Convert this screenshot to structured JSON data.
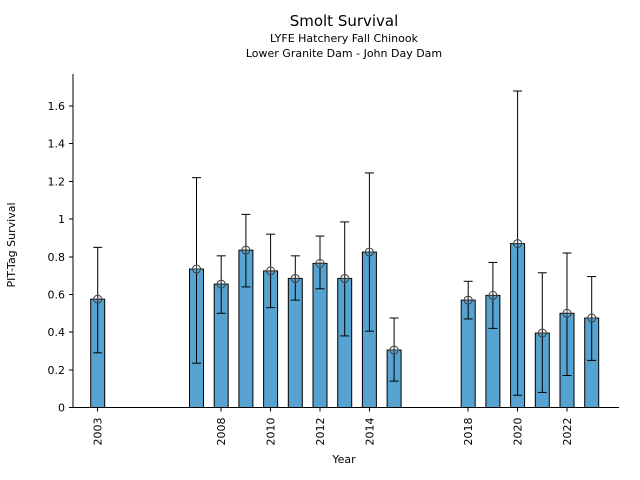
{
  "chart_data": {
    "type": "bar",
    "title": "Smolt Survival",
    "subtitle1": "LYFE Hatchery Fall Chinook",
    "subtitle2": "Lower Granite Dam - John Day Dam",
    "xlabel": "Year",
    "ylabel": "PIT-Tag Survival",
    "xlim": [
      2002,
      2024.1
    ],
    "ylim": [
      0,
      1.77
    ],
    "grid": false,
    "legend": null,
    "yticks": [
      0,
      0.2,
      0.4,
      0.6,
      0.8,
      1,
      1.2,
      1.4,
      1.6
    ],
    "ytick_labels": [
      "0",
      "0.2",
      "0.4",
      "0.6",
      "0.8",
      "1",
      "1.2",
      "1.4",
      "1.6"
    ],
    "xticks": [
      2003,
      2008,
      2010,
      2012,
      2014,
      2018,
      2020,
      2022
    ],
    "bar_color": "#56a3d2",
    "bar_edge_color": "#000000",
    "errorbar_color": "#000000",
    "marker": "circle-plus",
    "marker_color": "#3d3d3d",
    "series": [
      {
        "name": "PIT-Tag Survival",
        "points": [
          {
            "year": 2003,
            "value": 0.575,
            "ci_low": 0.29,
            "ci_high": 0.85
          },
          {
            "year": 2007,
            "value": 0.735,
            "ci_low": 0.235,
            "ci_high": 1.22
          },
          {
            "year": 2008,
            "value": 0.655,
            "ci_low": 0.5,
            "ci_high": 0.805
          },
          {
            "year": 2009,
            "value": 0.835,
            "ci_low": 0.64,
            "ci_high": 1.025
          },
          {
            "year": 2010,
            "value": 0.725,
            "ci_low": 0.53,
            "ci_high": 0.92
          },
          {
            "year": 2011,
            "value": 0.685,
            "ci_low": 0.57,
            "ci_high": 0.805
          },
          {
            "year": 2012,
            "value": 0.765,
            "ci_low": 0.63,
            "ci_high": 0.91
          },
          {
            "year": 2013,
            "value": 0.685,
            "ci_low": 0.38,
            "ci_high": 0.985
          },
          {
            "year": 2014,
            "value": 0.825,
            "ci_low": 0.405,
            "ci_high": 1.245
          },
          {
            "year": 2015,
            "value": 0.305,
            "ci_low": 0.14,
            "ci_high": 0.475
          },
          {
            "year": 2018,
            "value": 0.57,
            "ci_low": 0.47,
            "ci_high": 0.67
          },
          {
            "year": 2019,
            "value": 0.595,
            "ci_low": 0.42,
            "ci_high": 0.77
          },
          {
            "year": 2020,
            "value": 0.87,
            "ci_low": 0.065,
            "ci_high": 1.68
          },
          {
            "year": 2021,
            "value": 0.395,
            "ci_low": 0.08,
            "ci_high": 0.715
          },
          {
            "year": 2022,
            "value": 0.5,
            "ci_low": 0.17,
            "ci_high": 0.82
          },
          {
            "year": 2023,
            "value": 0.475,
            "ci_low": 0.25,
            "ci_high": 0.695
          }
        ]
      }
    ]
  }
}
